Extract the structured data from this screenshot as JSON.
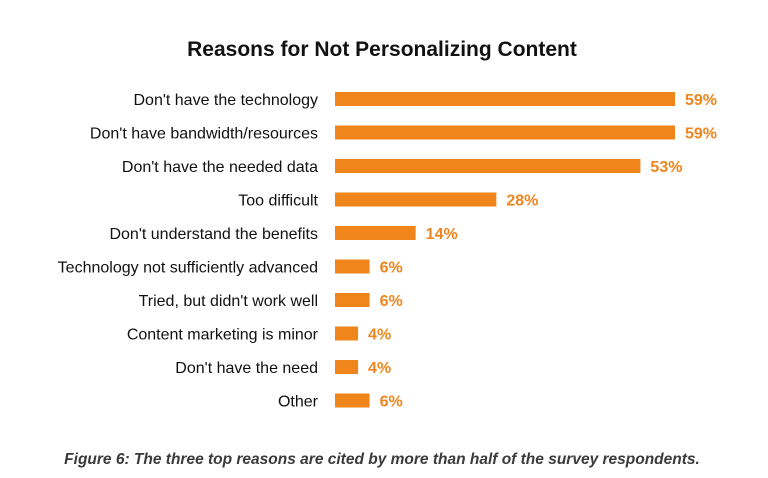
{
  "colors": {
    "bar": "#f0851c",
    "value_label": "#f0851c",
    "caption": "#3a3a3a"
  },
  "chart_data": {
    "type": "bar",
    "orientation": "horizontal",
    "title": "Reasons for Not Personalizing Content",
    "categories": [
      "Don't have the technology",
      "Don't have bandwidth/resources",
      "Don't have the needed data",
      "Too difficult",
      "Don't understand the benefits",
      "Technology not sufficiently advanced",
      "Tried, but didn't work well",
      "Content marketing is minor",
      "Don't have the need",
      "Other"
    ],
    "values": [
      59,
      59,
      53,
      28,
      14,
      6,
      6,
      4,
      4,
      6
    ],
    "value_labels": [
      "59%",
      "59%",
      "53%",
      "28%",
      "14%",
      "6%",
      "6%",
      "4%",
      "4%",
      "6%"
    ],
    "unit": "%",
    "xlim": [
      0,
      59
    ],
    "grid": false,
    "legend": "none"
  },
  "caption": "Figure 6: The three top reasons are cited by more than half of the survey respondents."
}
